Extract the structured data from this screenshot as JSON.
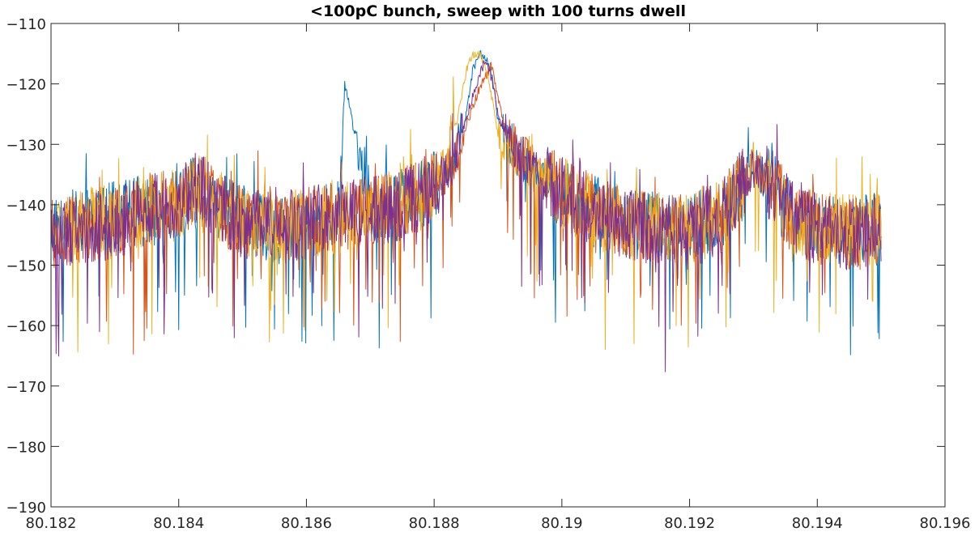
{
  "chart_data": {
    "type": "line",
    "title": "<100pC bunch, sweep with 100 turns dwell",
    "xlabel": "",
    "ylabel": "",
    "xlim": [
      80.182,
      80.196
    ],
    "ylim": [
      -190,
      -110
    ],
    "x_ticks": [
      "80.182",
      "80.184",
      "80.186",
      "80.188",
      "80.19",
      "80.192",
      "80.194",
      "80.196"
    ],
    "y_ticks": [
      "-110",
      "-120",
      "-130",
      "-140",
      "-150",
      "-160",
      "-170",
      "-180",
      "-190"
    ],
    "x_data_range": [
      80.182,
      80.195
    ],
    "grid": false,
    "legend": "none",
    "series": [
      {
        "color": "#0072BD",
        "values": [
          [
            80.182,
            -144
          ],
          [
            80.1825,
            -143
          ],
          [
            80.183,
            -142
          ],
          [
            80.1835,
            -141
          ],
          [
            80.184,
            -140
          ],
          [
            80.1843,
            -137
          ],
          [
            80.1846,
            -140
          ],
          [
            80.185,
            -143
          ],
          [
            80.1855,
            -144
          ],
          [
            80.186,
            -143
          ],
          [
            80.1865,
            -142
          ],
          [
            80.187,
            -141
          ],
          [
            80.1875,
            -140
          ],
          [
            80.188,
            -137
          ],
          [
            80.1883,
            -133
          ],
          [
            80.1885,
            -125
          ],
          [
            80.1866,
            -120
          ],
          [
            80.1886,
            -118
          ],
          [
            80.1887,
            -115
          ],
          [
            80.1888,
            -115.5
          ],
          [
            80.1889,
            -118
          ],
          [
            80.189,
            -126
          ],
          [
            80.1892,
            -131
          ],
          [
            80.1895,
            -134
          ],
          [
            80.19,
            -138
          ],
          [
            80.1905,
            -141
          ],
          [
            80.191,
            -143
          ],
          [
            80.1915,
            -144
          ],
          [
            80.192,
            -144
          ],
          [
            80.1925,
            -142
          ],
          [
            80.1928,
            -137
          ],
          [
            80.193,
            -134
          ],
          [
            80.1933,
            -137
          ],
          [
            80.1936,
            -142
          ],
          [
            80.194,
            -144
          ],
          [
            80.1945,
            -144
          ],
          [
            80.195,
            -144
          ]
        ]
      },
      {
        "color": "#D95319",
        "values": [
          [
            80.182,
            -145
          ],
          [
            80.1825,
            -144
          ],
          [
            80.183,
            -143
          ],
          [
            80.1835,
            -141
          ],
          [
            80.184,
            -140
          ],
          [
            80.1843,
            -137
          ],
          [
            80.1846,
            -140
          ],
          [
            80.185,
            -143
          ],
          [
            80.1855,
            -144
          ],
          [
            80.186,
            -143
          ],
          [
            80.1865,
            -142
          ],
          [
            80.187,
            -141
          ],
          [
            80.1875,
            -140
          ],
          [
            80.188,
            -137
          ],
          [
            80.1883,
            -133
          ],
          [
            80.1885,
            -127
          ],
          [
            80.1887,
            -121
          ],
          [
            80.1888,
            -119
          ],
          [
            80.1889,
            -117
          ],
          [
            80.189,
            -122
          ],
          [
            80.1891,
            -127
          ],
          [
            80.1893,
            -131
          ],
          [
            80.1896,
            -134
          ],
          [
            80.19,
            -138
          ],
          [
            80.1905,
            -141
          ],
          [
            80.191,
            -143
          ],
          [
            80.1915,
            -144
          ],
          [
            80.192,
            -144
          ],
          [
            80.1925,
            -142
          ],
          [
            80.1928,
            -137
          ],
          [
            80.193,
            -133
          ],
          [
            80.1933,
            -137
          ],
          [
            80.1936,
            -142
          ],
          [
            80.194,
            -144
          ],
          [
            80.1945,
            -145
          ],
          [
            80.195,
            -144
          ]
        ]
      },
      {
        "color": "#EDB120",
        "values": [
          [
            80.182,
            -144
          ],
          [
            80.1825,
            -143
          ],
          [
            80.183,
            -142
          ],
          [
            80.1835,
            -141
          ],
          [
            80.184,
            -140
          ],
          [
            80.1843,
            -137
          ],
          [
            80.1846,
            -140
          ],
          [
            80.185,
            -143
          ],
          [
            80.1855,
            -144
          ],
          [
            80.186,
            -143
          ],
          [
            80.1865,
            -142
          ],
          [
            80.187,
            -141
          ],
          [
            80.1875,
            -140
          ],
          [
            80.188,
            -137
          ],
          [
            80.1882,
            -133
          ],
          [
            80.1884,
            -124
          ],
          [
            80.1885,
            -118
          ],
          [
            80.1886,
            -115
          ],
          [
            80.1887,
            -115
          ],
          [
            80.1888,
            -117
          ],
          [
            80.1889,
            -122
          ],
          [
            80.189,
            -128
          ],
          [
            80.1892,
            -131
          ],
          [
            80.1895,
            -134
          ],
          [
            80.19,
            -138
          ],
          [
            80.1905,
            -141
          ],
          [
            80.191,
            -143
          ],
          [
            80.1915,
            -144
          ],
          [
            80.192,
            -144
          ],
          [
            80.1925,
            -142
          ],
          [
            80.1928,
            -137
          ],
          [
            80.193,
            -133
          ],
          [
            80.1933,
            -137
          ],
          [
            80.1936,
            -142
          ],
          [
            80.194,
            -144
          ],
          [
            80.1945,
            -144
          ],
          [
            80.195,
            -144
          ]
        ]
      },
      {
        "color": "#7E2F8E",
        "values": [
          [
            80.182,
            -145
          ],
          [
            80.1825,
            -144
          ],
          [
            80.183,
            -143
          ],
          [
            80.1835,
            -141
          ],
          [
            80.184,
            -140
          ],
          [
            80.1843,
            -137
          ],
          [
            80.1846,
            -140
          ],
          [
            80.185,
            -143
          ],
          [
            80.1855,
            -144
          ],
          [
            80.186,
            -143
          ],
          [
            80.1865,
            -142
          ],
          [
            80.187,
            -141
          ],
          [
            80.1875,
            -140
          ],
          [
            80.188,
            -137
          ],
          [
            80.1883,
            -133
          ],
          [
            80.1885,
            -126
          ],
          [
            80.1886,
            -122
          ],
          [
            80.1887,
            -119
          ],
          [
            80.1888,
            -116
          ],
          [
            80.1889,
            -119
          ],
          [
            80.189,
            -125
          ],
          [
            80.1892,
            -130
          ],
          [
            80.1895,
            -134
          ],
          [
            80.19,
            -138
          ],
          [
            80.1905,
            -141
          ],
          [
            80.191,
            -143
          ],
          [
            80.1915,
            -144
          ],
          [
            80.192,
            -145
          ],
          [
            80.1925,
            -142
          ],
          [
            80.1928,
            -137
          ],
          [
            80.193,
            -134
          ],
          [
            80.1933,
            -137
          ],
          [
            80.1936,
            -142
          ],
          [
            80.194,
            -144
          ],
          [
            80.1945,
            -145
          ],
          [
            80.195,
            -144
          ]
        ]
      }
    ]
  }
}
